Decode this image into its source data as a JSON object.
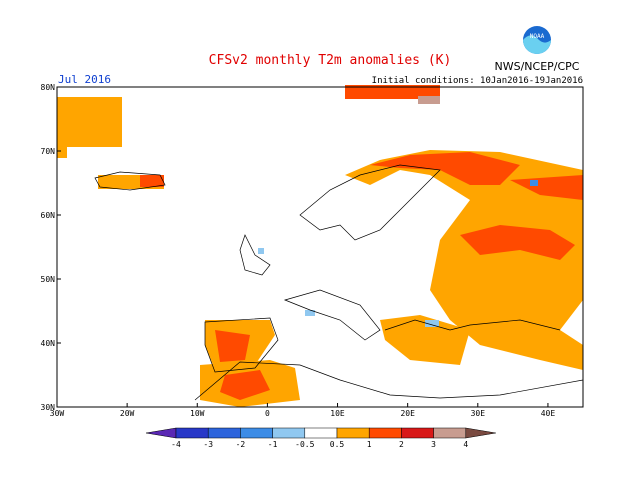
{
  "title": "CFSv2 monthly T2m anomalies (K)",
  "month": "Jul 2016",
  "initial_conditions": "Initial conditions: 10Jan2016-19Jan2016",
  "agency": "NWS/NCEP/CPC",
  "logo": "NOAA",
  "lat_labels": [
    "80N",
    "70N",
    "60N",
    "50N",
    "40N",
    "30N"
  ],
  "lon_labels": [
    "30W",
    "20W",
    "10W",
    "0",
    "10E",
    "20E",
    "30E",
    "40E"
  ],
  "colorbar": {
    "labels": [
      "-4",
      "-3",
      "-2",
      "-1",
      "-0.5",
      "0.5",
      "1",
      "2",
      "3",
      "4"
    ],
    "colors": [
      "#5a28b4",
      "#2838c8",
      "#2c64dc",
      "#3c8ce6",
      "#90c8f0",
      "#ffffff",
      "#ffa500",
      "#ff4a00",
      "#d81818",
      "#c89c90",
      "#7a4a40"
    ]
  }
}
